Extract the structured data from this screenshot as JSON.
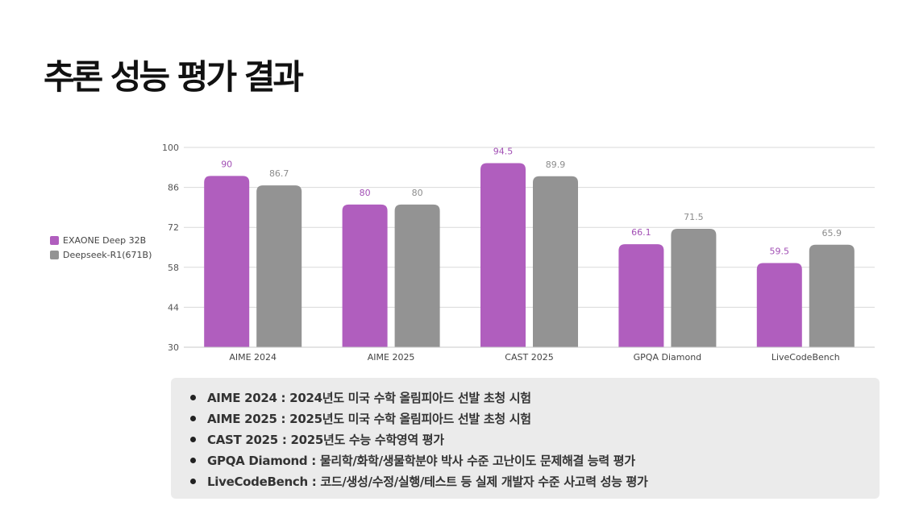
{
  "page": {
    "title": "추론 성능 평가 결과"
  },
  "colors": {
    "exaone": "#b05ebe",
    "deepseek": "#939393",
    "exaone_label": "#a24fb5",
    "deepseek_label": "#8c8c8c",
    "grid": "#d9d9d9",
    "notes_bg": "#ebebeb"
  },
  "chart_data": {
    "type": "bar",
    "title": "",
    "xlabel": "",
    "ylabel": "",
    "categories": [
      "AIME 2024",
      "AIME 2025",
      "CAST 2025",
      "GPQA Diamond",
      "LiveCodeBench"
    ],
    "series": [
      {
        "name": "EXAONE Deep 32B",
        "values": [
          90,
          80,
          94.5,
          66.1,
          59.5
        ],
        "labels": [
          "90",
          "80",
          "94.5",
          "66.1",
          "59.5"
        ]
      },
      {
        "name": "Deepseek-R1(671B)",
        "values": [
          86.7,
          80,
          89.9,
          71.5,
          65.9
        ],
        "labels": [
          "86.7",
          "80",
          "89.9",
          "71.5",
          "65.9"
        ]
      }
    ],
    "ylim": [
      30,
      100
    ],
    "yticks": [
      30,
      44,
      58,
      72,
      86,
      100
    ],
    "grid": true,
    "legend_position": "left"
  },
  "notes": [
    {
      "text": "AIME 2024 : 2024년도 미국 수학 올림피아드 선발 초청 시험"
    },
    {
      "text": "AIME 2025 : 2025년도 미국 수학 올림피아드 선발 초청 시험"
    },
    {
      "text": "CAST 2025 : 2025년도 수능 수학영역 평가"
    },
    {
      "text": "GPQA Diamond :  물리학/화학/생물학분야 박사 수준 고난이도 문제해결 능력 평가"
    },
    {
      "text": "LiveCodeBench : 코드/생성/수정/실행/테스트 등 실제 개발자 수준 사고력 성능 평가"
    }
  ]
}
